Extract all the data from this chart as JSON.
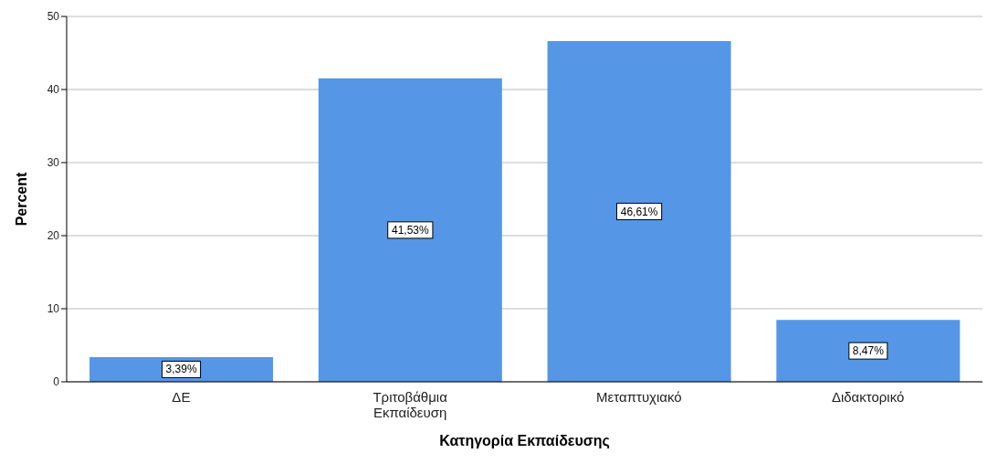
{
  "chart_data": {
    "type": "bar",
    "xlabel": "Κατηγορία Εκπαίδευσης",
    "ylabel": "Percent",
    "categories": [
      "ΔΕ",
      "Τριτοβάθμια Εκπαίδευση",
      "Μεταπτυχιακό",
      "Διδακτορικό"
    ],
    "values": [
      3.39,
      41.53,
      46.61,
      8.47
    ],
    "value_labels": [
      "3,39%",
      "41,53%",
      "46,61%",
      "8,47%"
    ],
    "color": "#5596e6",
    "ylim": [
      0,
      50
    ],
    "yticks": [
      0,
      10,
      20,
      30,
      40,
      50
    ],
    "grid": "y"
  }
}
